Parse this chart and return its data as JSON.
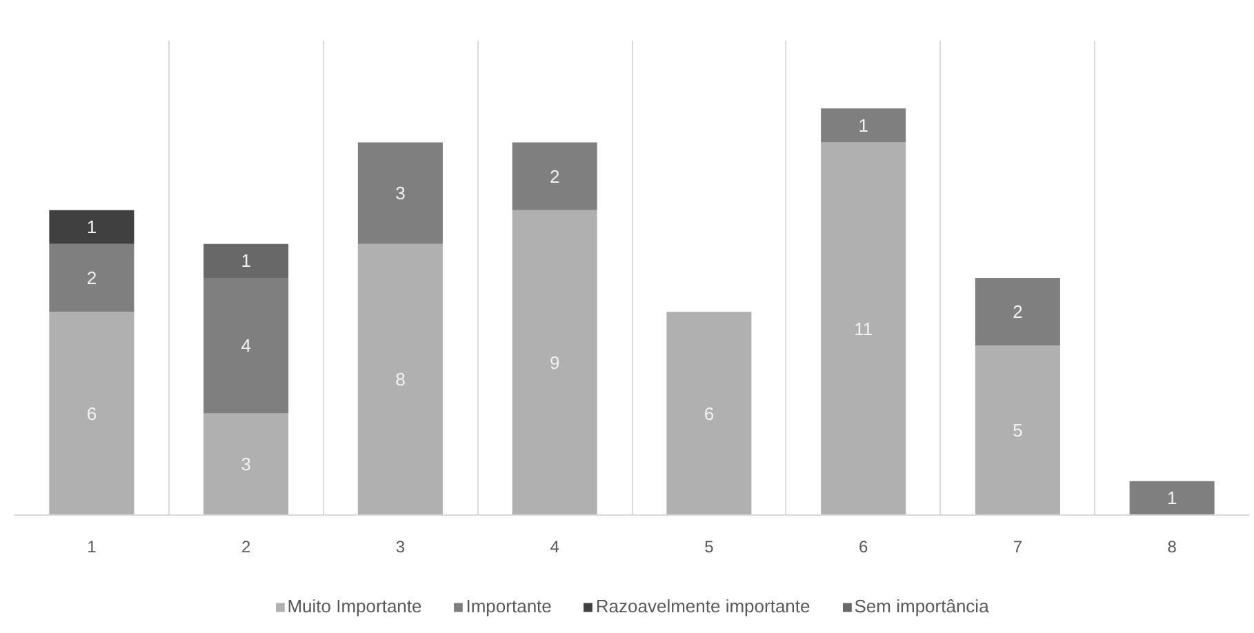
{
  "chart_data": {
    "type": "bar",
    "stacked": true,
    "categories": [
      "1",
      "2",
      "3",
      "4",
      "5",
      "6",
      "7",
      "8"
    ],
    "series": [
      {
        "name": "Muito Importante",
        "color": "#b0b0b0",
        "values": [
          6,
          3,
          8,
          9,
          6,
          11,
          5,
          null
        ]
      },
      {
        "name": "Importante",
        "color": "#7f7f7f",
        "values": [
          2,
          4,
          3,
          2,
          null,
          1,
          2,
          1
        ]
      },
      {
        "name": "Razoavelmente importante",
        "color": "#404040",
        "values": [
          1,
          null,
          null,
          null,
          null,
          null,
          null,
          null
        ]
      },
      {
        "name": "Sem importância",
        "color": "#686868",
        "values": [
          null,
          1,
          null,
          null,
          null,
          null,
          null,
          null
        ]
      }
    ],
    "ylim": [
      0,
      14
    ],
    "data_labels": true,
    "grid": "x",
    "legend": "bottom",
    "tick_labels": "x"
  }
}
